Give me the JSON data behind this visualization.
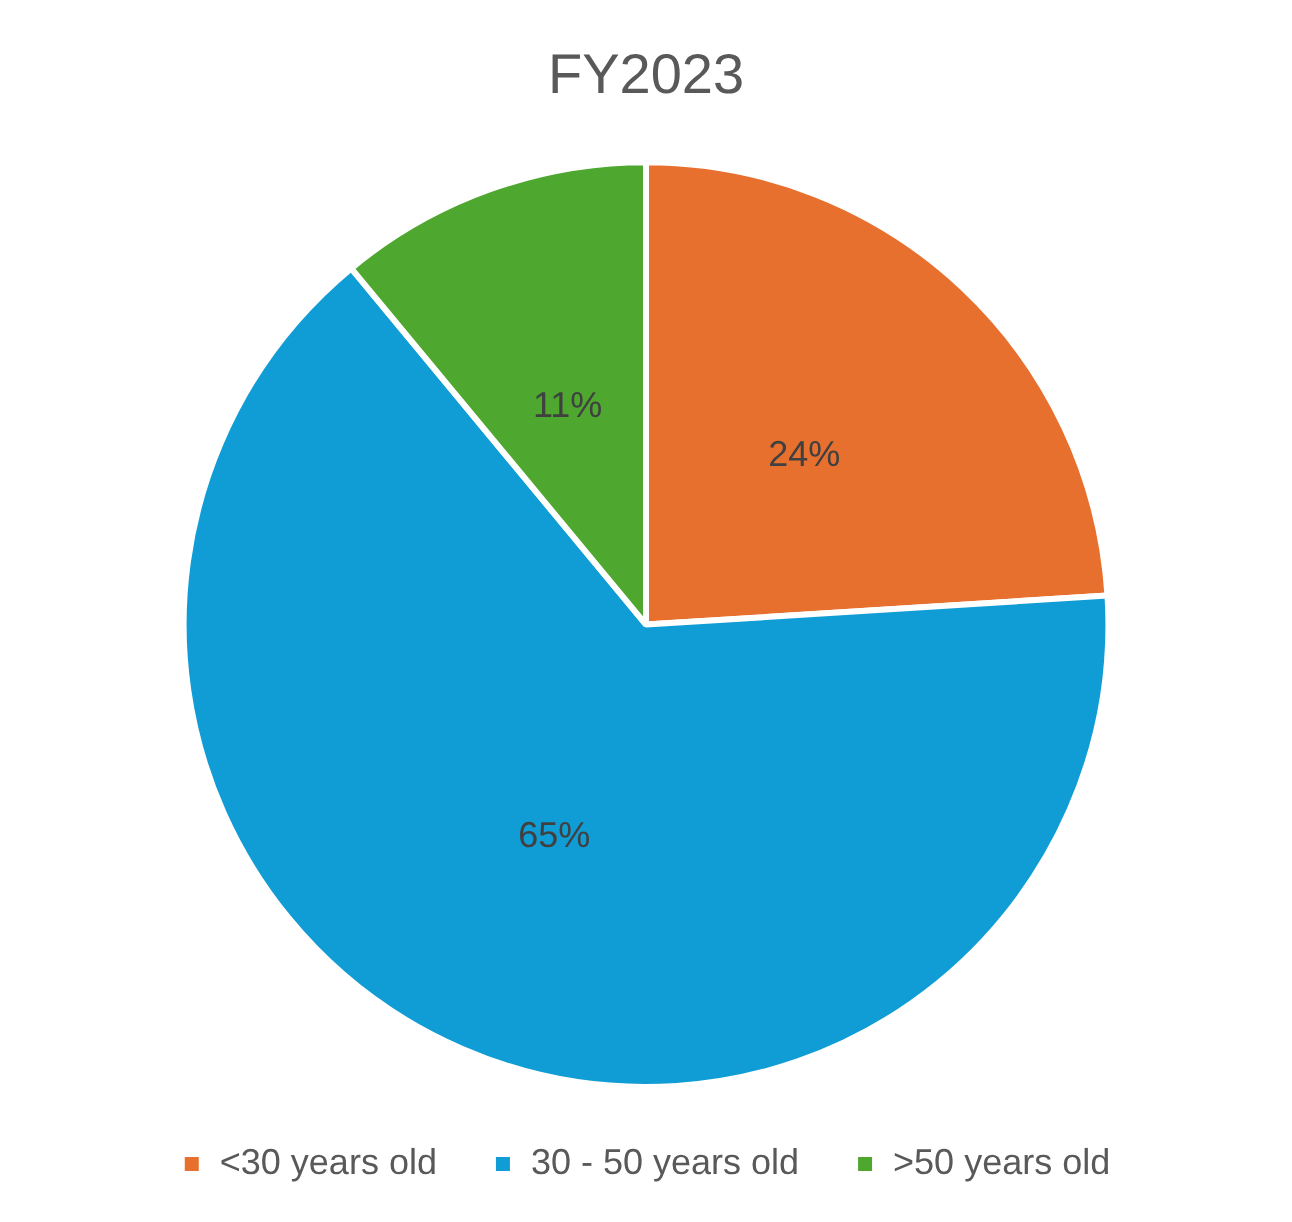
{
  "chart_data": {
    "type": "pie",
    "title": "FY2023",
    "categories": [
      "<30 years old",
      "30 - 50 years old",
      ">50 years old"
    ],
    "values": [
      24,
      65,
      11
    ],
    "value_labels": [
      "24%",
      "65%",
      "11%"
    ],
    "colors": [
      "#e8702f",
      "#109dd5",
      "#4ea72e"
    ],
    "legend": "bottom"
  }
}
